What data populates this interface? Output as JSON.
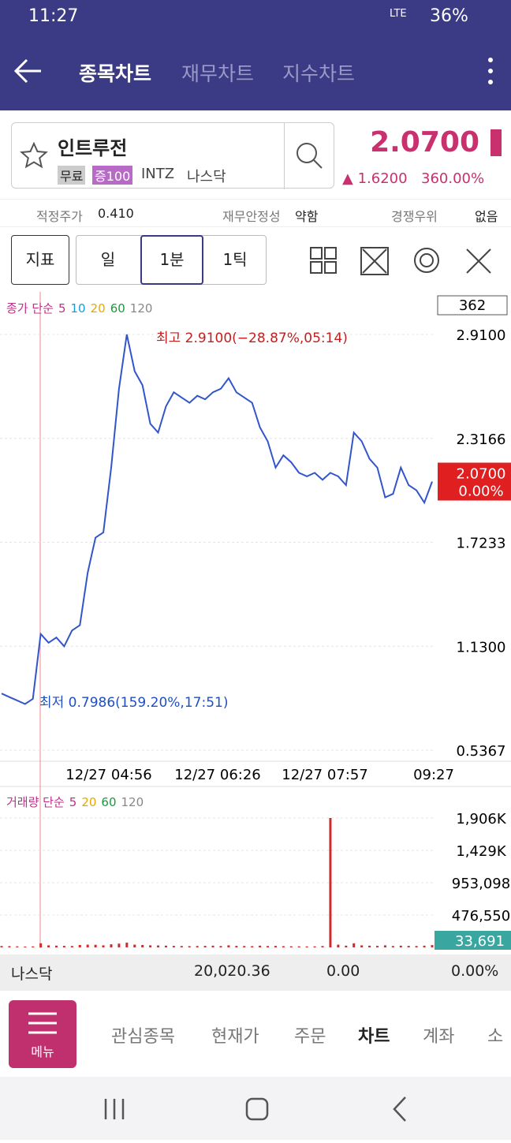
{
  "status": {
    "time": "11:27",
    "network": "LTE",
    "battery": "36%"
  },
  "header": {
    "tabs": [
      "종목차트",
      "재무차트",
      "지수차트"
    ]
  },
  "stock": {
    "name": "인트루전",
    "tags": [
      "무료",
      "증100"
    ],
    "ticker": "INTZ",
    "market": "나스닥",
    "price": "2.0700",
    "change": "1.6200",
    "change_pct": "360.00%"
  },
  "info": [
    {
      "label": "적정주가",
      "value": "0.410"
    },
    {
      "label": "재무안정성",
      "value": "약함"
    },
    {
      "label": "경쟁우위",
      "value": "없음"
    }
  ],
  "toolbar": {
    "indicator": "지표",
    "periods": [
      "일",
      "1분",
      "1틱"
    ]
  },
  "price_chart": {
    "type": "line",
    "legend_label": "종가 단순",
    "ma_periods": [
      {
        "value": 5,
        "color": "#c0308a"
      },
      {
        "value": 10,
        "color": "#1a9bd6"
      },
      {
        "value": 20,
        "color": "#e8a800"
      },
      {
        "value": 60,
        "color": "#1a9b3a"
      },
      {
        "value": 120,
        "color": "#888888"
      }
    ],
    "count": "362",
    "ylim": [
      0.5367,
      2.91
    ],
    "yticks": [
      {
        "value": 2.91,
        "label": "2.9100"
      },
      {
        "value": 2.3166,
        "label": "2.3166"
      },
      {
        "value": 1.7233,
        "label": "1.7233"
      },
      {
        "value": 1.13,
        "label": "1.1300"
      },
      {
        "value": 0.5367,
        "label": "0.5367"
      }
    ],
    "xticks": [
      "12/27 04:56",
      "12/27 06:26",
      "12/27 07:57",
      "09:27"
    ],
    "high_note": "최고 2.9100(−28.87%,05:14)",
    "low_note": "최저 0.7986(159.20%,17:51)",
    "current": {
      "value": 2.07,
      "label": "2.0700",
      "pct": "0.00%"
    },
    "color": "#3355cc",
    "values": [
      0.86,
      0.84,
      0.82,
      0.8,
      0.83,
      1.2,
      1.15,
      1.18,
      1.13,
      1.22,
      1.25,
      1.55,
      1.75,
      1.78,
      2.15,
      2.6,
      2.91,
      2.7,
      2.62,
      2.4,
      2.35,
      2.5,
      2.58,
      2.55,
      2.52,
      2.56,
      2.54,
      2.58,
      2.6,
      2.66,
      2.58,
      2.55,
      2.52,
      2.38,
      2.3,
      2.15,
      2.22,
      2.18,
      2.12,
      2.1,
      2.12,
      2.08,
      2.12,
      2.1,
      2.05,
      2.35,
      2.3,
      2.2,
      2.15,
      1.98,
      2.0,
      2.15,
      2.05,
      2.02,
      1.95,
      2.07
    ]
  },
  "volume_chart": {
    "type": "bar",
    "legend_label": "거래량 단순",
    "ma_periods": [
      {
        "value": 5,
        "color": "#c0308a"
      },
      {
        "value": 20,
        "color": "#e8a800"
      },
      {
        "value": 60,
        "color": "#1a9b3a"
      },
      {
        "value": 120,
        "color": "#888888"
      }
    ],
    "ylim": [
      0,
      2278000
    ],
    "yticks": [
      {
        "value": 1906000,
        "label": "1,906K"
      },
      {
        "value": 1429000,
        "label": "1,429K"
      },
      {
        "value": 953098,
        "label": "953,098"
      },
      {
        "value": 476550,
        "label": "476,550"
      }
    ],
    "current": "33,691",
    "color": "#d02a2a",
    "values": [
      20000,
      18000,
      15000,
      12000,
      14000,
      60000,
      30000,
      25000,
      22000,
      20000,
      35000,
      40000,
      38000,
      30000,
      45000,
      55000,
      70000,
      40000,
      35000,
      30000,
      28000,
      25000,
      22000,
      20000,
      18000,
      20000,
      22000,
      25000,
      20000,
      30000,
      22000,
      20000,
      18000,
      25000,
      20000,
      22000,
      18000,
      16000,
      15000,
      14000,
      15000,
      20000,
      1906000,
      40000,
      25000,
      60000,
      30000,
      25000,
      22000,
      30000,
      20000,
      25000,
      22000,
      20000,
      25000,
      33691
    ]
  },
  "index_bar": {
    "name": "나스닥",
    "value": "20,020.36",
    "change": "0.00",
    "pct": "0.00%"
  },
  "bottom_nav": {
    "menu": "메뉴",
    "items": [
      "관심종목",
      "현재가",
      "주문",
      "차트",
      "계좌",
      "소"
    ]
  }
}
